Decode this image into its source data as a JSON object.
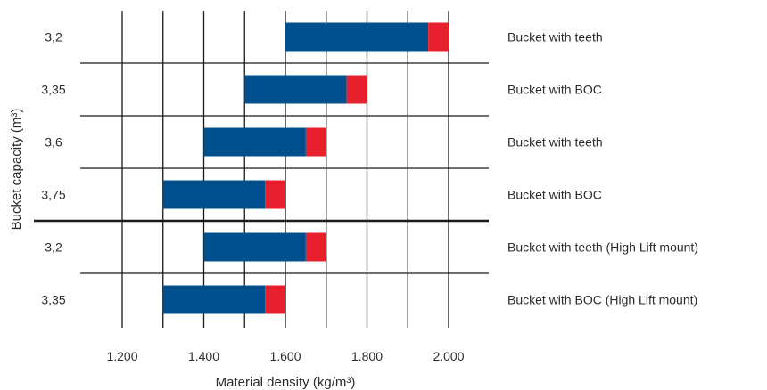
{
  "chart_data": {
    "type": "bar",
    "subtype": "floating-horizontal-range",
    "xlabel": "Material density (kg/m³)",
    "ylabel": "Bucket capacity (m³)",
    "xlim": [
      1100,
      2100
    ],
    "x_ticks": [
      1200,
      1400,
      1600,
      1800,
      2000
    ],
    "x_tick_labels": [
      "1.200",
      "1.400",
      "1.600",
      "1.800",
      "2.000"
    ],
    "grid": "on",
    "colors": {
      "main": "#00508F",
      "extension": "#E8202E",
      "grid": "#1a1a1a"
    },
    "rows": [
      {
        "capacity": "3,2",
        "description": "Bucket with teeth",
        "start": 1600,
        "main_end": 1950,
        "end": 2000
      },
      {
        "capacity": "3,35",
        "description": "Bucket with BOC",
        "start": 1500,
        "main_end": 1750,
        "end": 1800
      },
      {
        "capacity": "3,6",
        "description": "Bucket with teeth",
        "start": 1400,
        "main_end": 1650,
        "end": 1700
      },
      {
        "capacity": "3,75",
        "description": "Bucket with BOC",
        "start": 1300,
        "main_end": 1550,
        "end": 1600
      },
      {
        "capacity": "3,2",
        "description": "Bucket with teeth (High Lift mount)",
        "start": 1400,
        "main_end": 1650,
        "end": 1700
      },
      {
        "capacity": "3,35",
        "description": "Bucket with BOC (High Lift mount)",
        "start": 1300,
        "main_end": 1550,
        "end": 1600
      }
    ],
    "group_separator_after_row": 3
  }
}
